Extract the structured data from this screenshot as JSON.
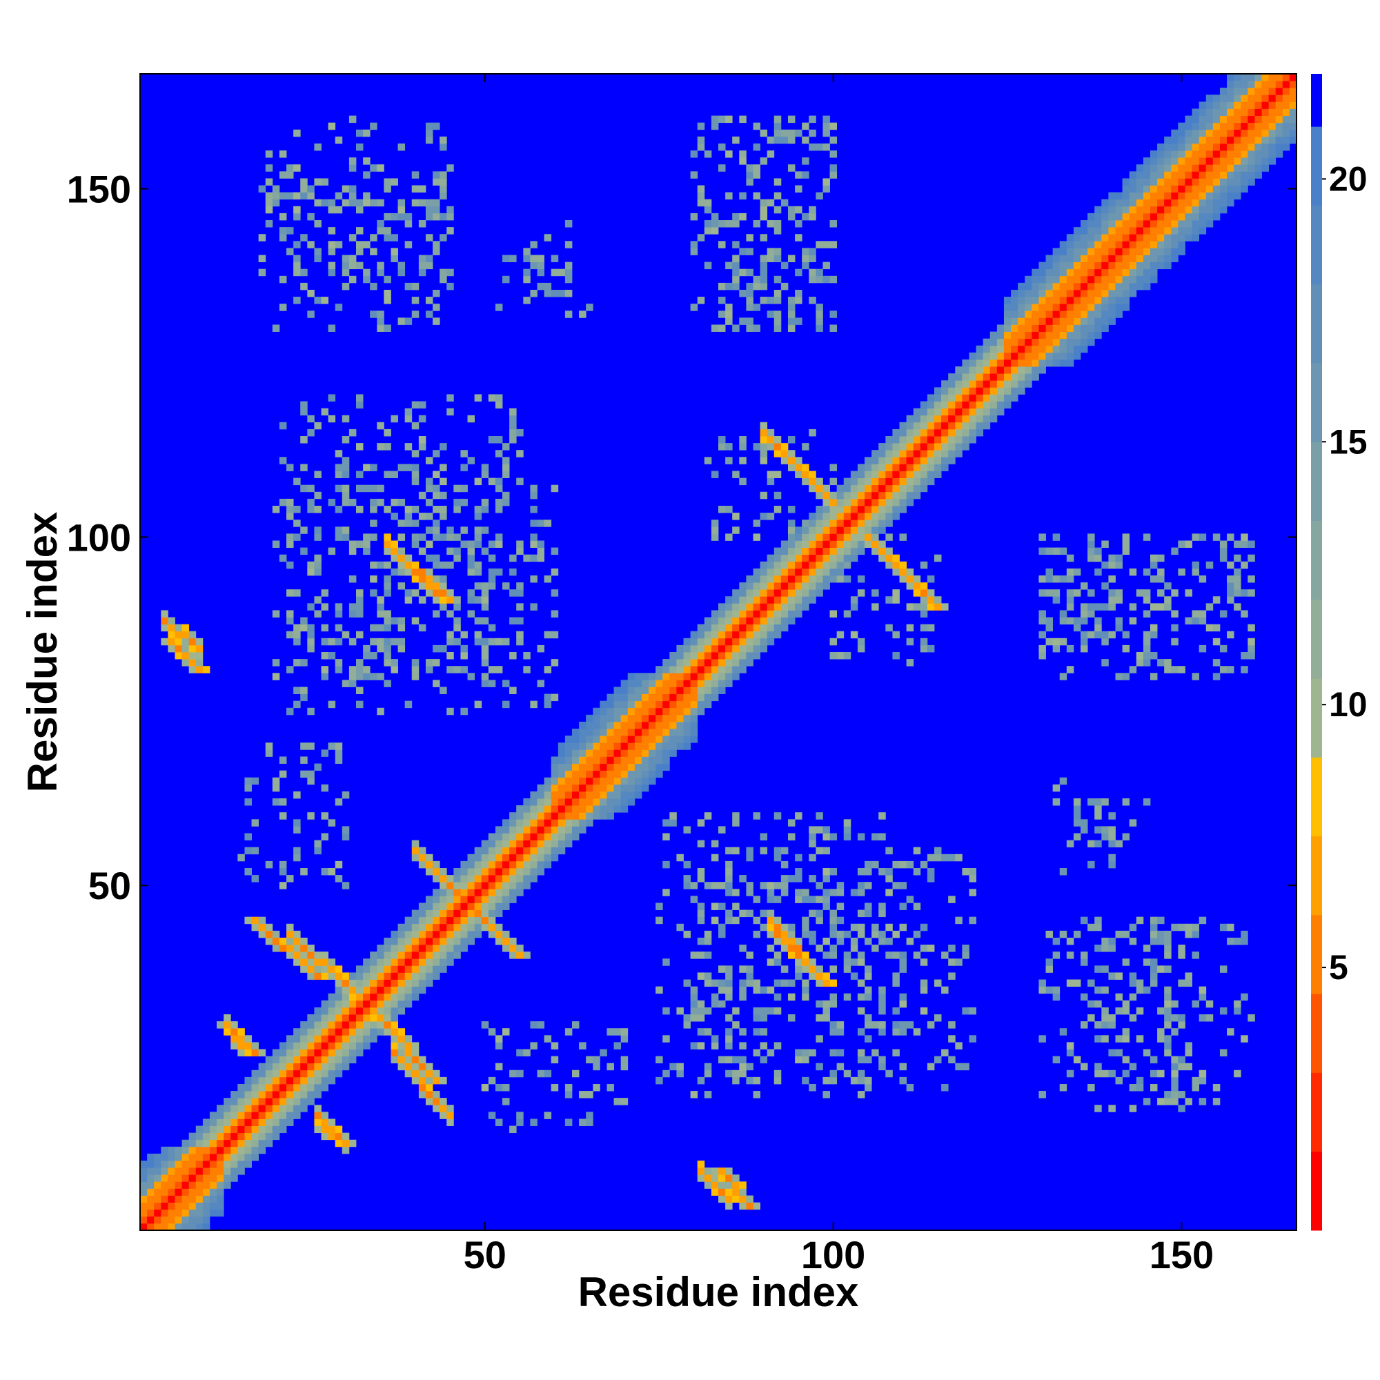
{
  "chart_data": {
    "type": "heatmap",
    "title": "",
    "xlabel": "Residue index",
    "ylabel": "Residue index",
    "n_residues": 166,
    "xlim": [
      1,
      166
    ],
    "ylim": [
      1,
      166
    ],
    "x_ticks": [
      50,
      100,
      150
    ],
    "y_ticks": [
      50,
      100,
      150
    ],
    "colorbar": {
      "ticks": [
        5,
        10,
        15,
        20
      ],
      "range": [
        0,
        22
      ],
      "levels": [
        {
          "max": 1.5,
          "color": "#ff0000"
        },
        {
          "max": 3,
          "color": "#ff2a00"
        },
        {
          "max": 4.5,
          "color": "#ff5500"
        },
        {
          "max": 6,
          "color": "#ff7f00"
        },
        {
          "max": 7.5,
          "color": "#ff9f00"
        },
        {
          "max": 9,
          "color": "#ffbf00"
        },
        {
          "max": 10.5,
          "color": "#9fb592"
        },
        {
          "max": 12,
          "color": "#92ae99"
        },
        {
          "max": 13.5,
          "color": "#86a6a0"
        },
        {
          "max": 15,
          "color": "#7a9fa8"
        },
        {
          "max": 16.5,
          "color": "#6d97b0"
        },
        {
          "max": 18,
          "color": "#618fb8"
        },
        {
          "max": 19.5,
          "color": "#5588c0"
        },
        {
          "max": 21,
          "color": "#4a80c8"
        },
        {
          "max": 22,
          "color": "#0000ff"
        }
      ]
    },
    "features": {
      "helices": [
        [
          1,
          12
        ],
        [
          60,
          80
        ],
        [
          125,
          166
        ]
      ],
      "strand_pairs": [
        {
          "a": [
            40,
            50
          ],
          "b": [
            45,
            55
          ],
          "orientation": "anti"
        },
        {
          "a": [
            22,
            31
          ],
          "b": [
            35,
            43
          ],
          "orientation": "anti"
        },
        {
          "a": [
            37,
            45
          ],
          "b": [
            17,
            26
          ],
          "orientation": "anti"
        },
        {
          "a": [
            90,
            100
          ],
          "b": [
            105,
            115
          ],
          "orientation": "anti"
        },
        {
          "a": [
            36,
            43
          ],
          "b": [
            92,
            99
          ],
          "orientation": "anti"
        },
        {
          "a": [
            91,
            98
          ],
          "b": [
            37,
            45
          ],
          "orientation": "anti"
        },
        {
          "a": [
            4,
            9
          ],
          "b": [
            84,
            88
          ],
          "orientation": "anti"
        },
        {
          "a": [
            81,
            85
          ],
          "b": [
            5,
            9
          ],
          "orientation": "anti"
        },
        {
          "a": [
            13,
            15
          ],
          "b": [
            27,
            30
          ],
          "orientation": "anti"
        },
        {
          "a": [
            26,
            30
          ],
          "b": [
            13,
            17
          ],
          "orientation": "anti"
        }
      ],
      "scatter_blocks": [
        {
          "x": [
            18,
            45
          ],
          "y": [
            138,
            160
          ]
        },
        {
          "x": [
            52,
            65
          ],
          "y": [
            132,
            140
          ]
        },
        {
          "x": [
            82,
            100
          ],
          "y": [
            130,
            160
          ]
        },
        {
          "x": [
            22,
            60
          ],
          "y": [
            75,
            110
          ]
        },
        {
          "x": [
            82,
            100
          ],
          "y": [
            100,
            115
          ]
        },
        {
          "x": [
            130,
            160
          ],
          "y": [
            80,
            100
          ]
        },
        {
          "x": [
            80,
            120
          ],
          "y": [
            20,
            55
          ]
        },
        {
          "x": [
            130,
            150
          ],
          "y": [
            18,
            45
          ]
        },
        {
          "x": [
            135,
            145
          ],
          "y": [
            55,
            62
          ]
        },
        {
          "x": [
            50,
            70
          ],
          "y": [
            15,
            30
          ]
        }
      ]
    }
  }
}
